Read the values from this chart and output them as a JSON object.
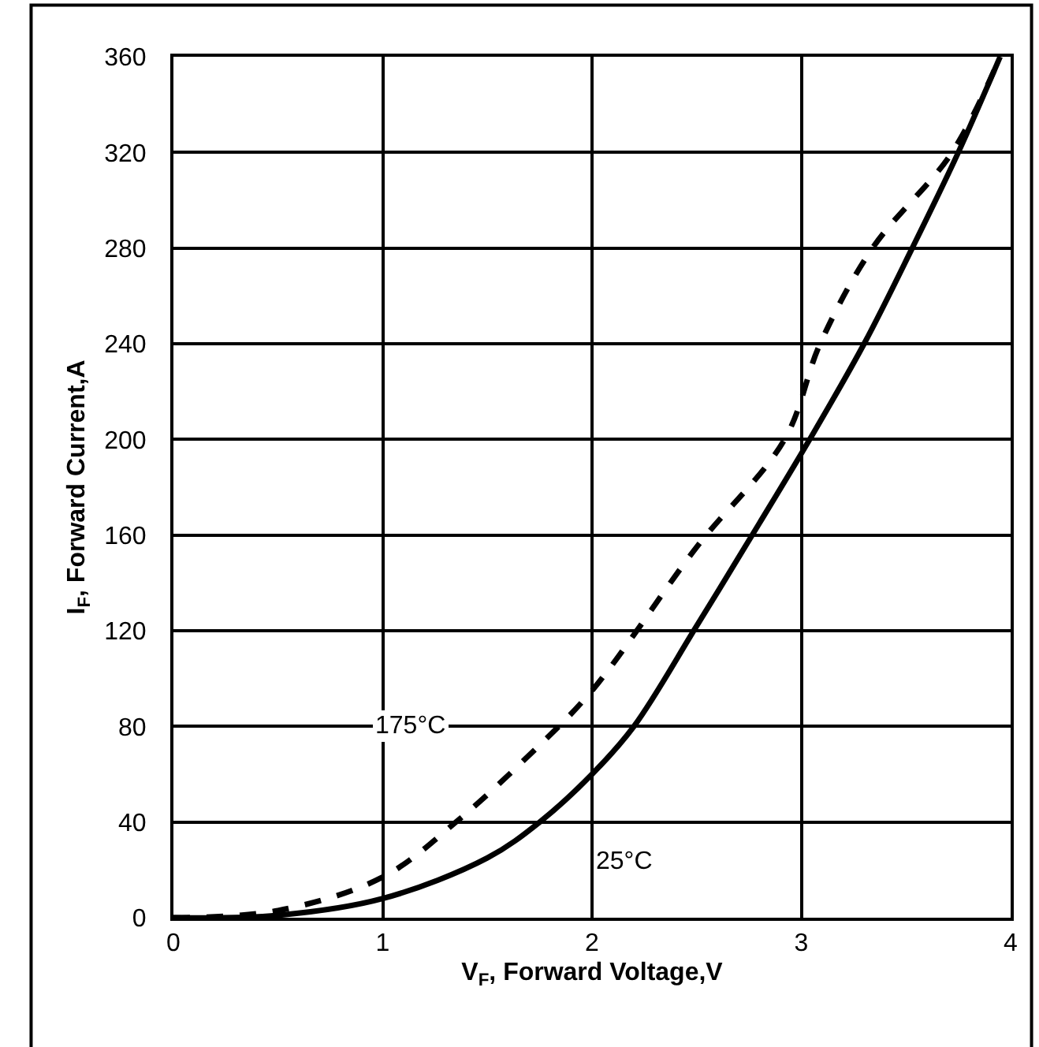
{
  "chart_data": {
    "type": "line",
    "xlabel": "V$_{F}$, Forward Voltage,V",
    "ylabel": "I$_{F}$, Forward Current,A",
    "xlim": [
      0,
      4
    ],
    "xticks": [
      0,
      1,
      2,
      3,
      4
    ],
    "ylim": [
      0,
      360
    ],
    "yticks": [
      0,
      40,
      80,
      120,
      160,
      200,
      240,
      280,
      320,
      360
    ],
    "grid": true,
    "legend": false,
    "series": [
      {
        "name": "25°C",
        "color": "#000000",
        "line_style": "solid",
        "x": [
          0,
          0.5,
          1,
          1.5,
          1.75,
          2,
          2.2,
          2.5,
          2.8,
          3.04,
          3.3,
          3.53,
          3.75,
          3.95
        ],
        "values": [
          0,
          1,
          8,
          25,
          40,
          60,
          80,
          122,
          165,
          200,
          240,
          280,
          320,
          360
        ]
      },
      {
        "name": "175°C",
        "color": "#000000",
        "line_style": "dashed",
        "x": [
          0,
          0.5,
          1,
          1.35,
          1.7,
          2,
          2.5,
          2.92,
          3.09,
          3.34,
          3.72,
          3.95
        ],
        "values": [
          0,
          3,
          17,
          40,
          68,
          95,
          155,
          200,
          240,
          280,
          320,
          360
        ]
      }
    ]
  }
}
